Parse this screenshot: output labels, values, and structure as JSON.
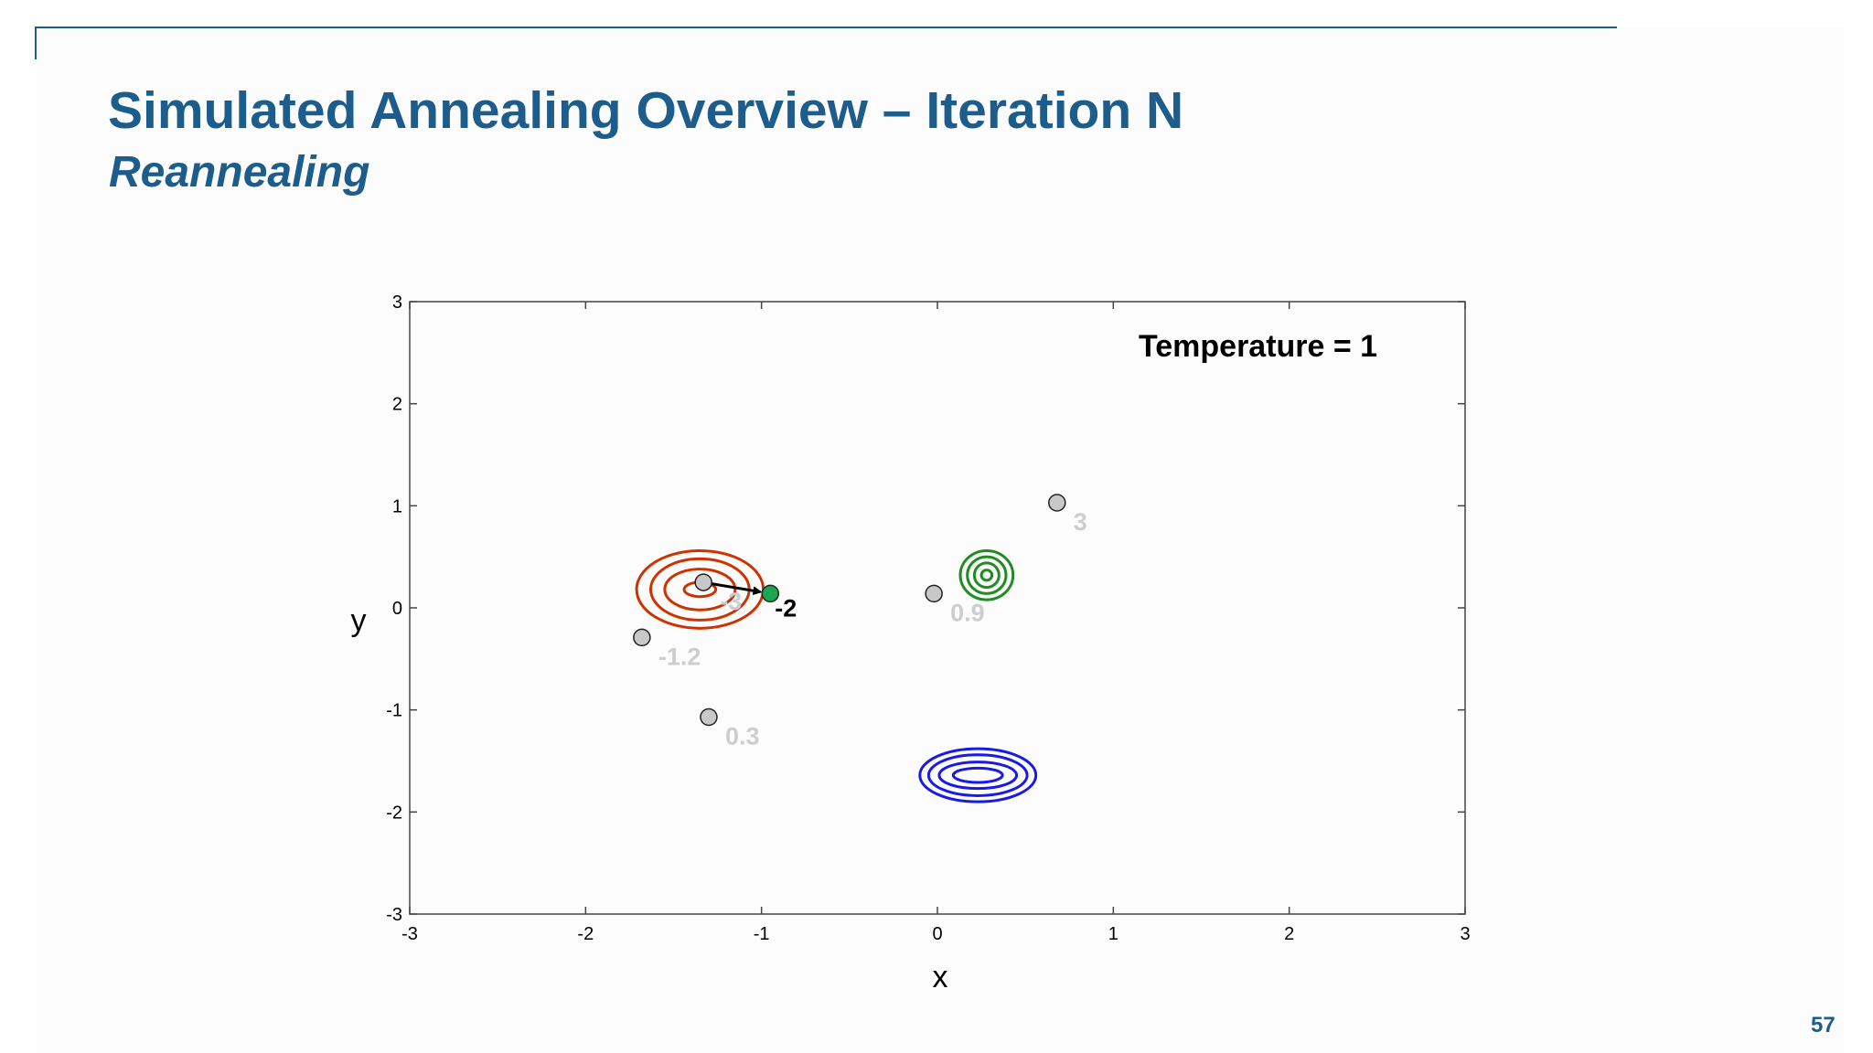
{
  "slide": {
    "title": "Simulated Annealing Overview – Iteration N",
    "subtitle": "Reannealing",
    "page_number": "57",
    "accent_color": "#1c5d8c"
  },
  "chart_data": {
    "type": "scatter",
    "xlabel": "x",
    "ylabel": "y",
    "xlim": [
      -3,
      3
    ],
    "ylim": [
      -3,
      3
    ],
    "xticks": [
      -3,
      -2,
      -1,
      0,
      1,
      2,
      3
    ],
    "yticks": [
      -3,
      -2,
      -1,
      0,
      1,
      2,
      3
    ],
    "annotation": "Temperature = 1",
    "points": [
      {
        "x": -1.33,
        "y": 0.25,
        "label": "-3",
        "state": "previous",
        "color": "#c8c8c8"
      },
      {
        "x": -0.95,
        "y": 0.14,
        "label": "-2",
        "state": "current",
        "color": "#1aa64a"
      },
      {
        "x": -1.68,
        "y": -0.29,
        "label": "-1.2",
        "state": "previous",
        "color": "#c8c8c8"
      },
      {
        "x": -1.3,
        "y": -1.07,
        "label": "0.3",
        "state": "previous",
        "color": "#c8c8c8"
      },
      {
        "x": -0.02,
        "y": 0.14,
        "label": "0.9",
        "state": "previous",
        "color": "#c8c8c8"
      },
      {
        "x": 0.68,
        "y": 1.03,
        "label": "3",
        "state": "previous",
        "color": "#c8c8c8"
      }
    ],
    "move": {
      "from": [
        -1.33,
        0.25
      ],
      "to": [
        -0.95,
        0.14
      ]
    },
    "contours": [
      {
        "color": "#cc3300",
        "cx": -1.35,
        "cy": 0.18,
        "rx": [
          0.09,
          0.2,
          0.28,
          0.36
        ],
        "ry": [
          0.07,
          0.2,
          0.3,
          0.38
        ]
      },
      {
        "color": "#228b22",
        "cx": 0.28,
        "cy": 0.32,
        "rx": [
          0.03,
          0.07,
          0.11,
          0.15
        ],
        "ry": [
          0.05,
          0.12,
          0.18,
          0.24
        ]
      },
      {
        "color": "#1a1ae6",
        "cx": 0.23,
        "cy": -1.64,
        "rx": [
          0.14,
          0.22,
          0.28,
          0.33
        ],
        "ry": [
          0.07,
          0.13,
          0.2,
          0.26
        ]
      }
    ]
  }
}
